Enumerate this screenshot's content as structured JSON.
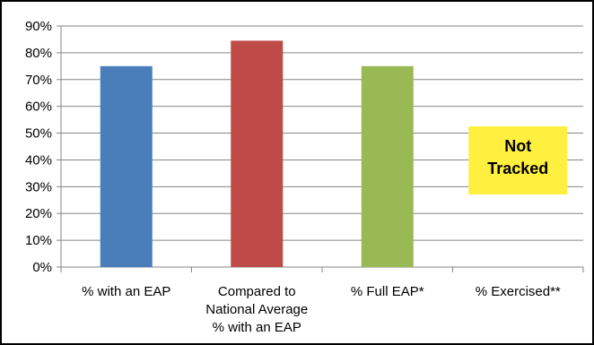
{
  "chart_data": {
    "type": "bar",
    "categories": [
      [
        "% with an EAP"
      ],
      [
        "Compared to",
        "National Average",
        "% with an EAP"
      ],
      [
        "% Full EAP*"
      ],
      [
        "% Exercised**"
      ]
    ],
    "values": [
      75,
      84.5,
      75,
      null
    ],
    "colors": [
      "#4a7ebb",
      "#be4b48",
      "#98b954",
      null
    ],
    "ylim": [
      0,
      90
    ],
    "yticks": [
      "0%",
      "10%",
      "20%",
      "30%",
      "40%",
      "50%",
      "60%",
      "70%",
      "80%",
      "90%"
    ],
    "title": "",
    "xlabel": "",
    "ylabel": "",
    "legend": "none",
    "grid": true,
    "annotations": [
      {
        "category_index": 3,
        "lines": [
          "Not",
          "Tracked"
        ],
        "background": "#ffef3f"
      }
    ]
  }
}
